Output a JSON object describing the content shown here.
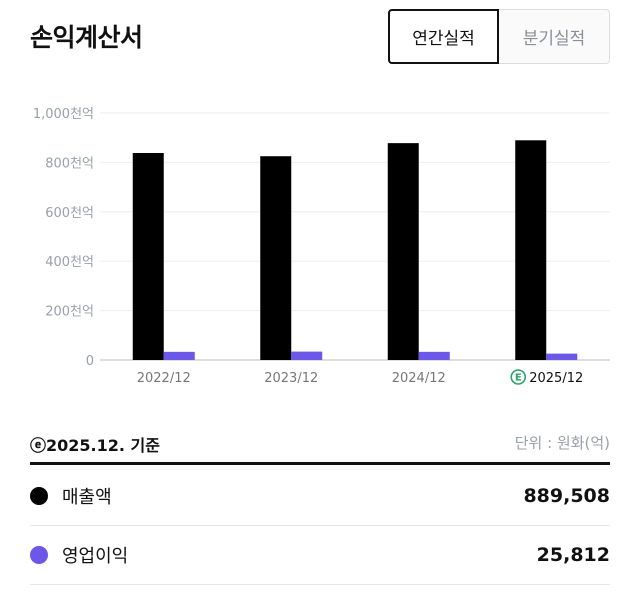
{
  "header": {
    "title": "손익계산서",
    "tabs": [
      {
        "label": "연간실적",
        "active": true
      },
      {
        "label": "분기실적",
        "active": false
      }
    ]
  },
  "chart_data": {
    "type": "bar",
    "categories": [
      "2022/12",
      "2023/12",
      "2024/12",
      "2025/12"
    ],
    "estimated_category_index": 3,
    "estimate_marker": "E",
    "series": [
      {
        "name": "매출액",
        "color": "#000000",
        "values": [
          838,
          825,
          878,
          889.508
        ]
      },
      {
        "name": "영업이익",
        "color": "#6b57e8",
        "values": [
          33,
          34,
          33,
          25.812
        ]
      }
    ],
    "ylim": [
      0,
      1000
    ],
    "yticks": [
      0,
      200,
      400,
      600,
      800,
      1000
    ],
    "ytick_labels": [
      "0",
      "200천억",
      "400천억",
      "600천억",
      "800천억",
      "1,000천억"
    ],
    "grid": true
  },
  "summary": {
    "basis": "ⓔ2025.12. 기준",
    "unit": "단위 : 원화(억)",
    "rows": [
      {
        "label": "매출액",
        "value": "889,508",
        "color": "#000000"
      },
      {
        "label": "영업이익",
        "value": "25,812",
        "color": "#6b57e8"
      }
    ]
  }
}
